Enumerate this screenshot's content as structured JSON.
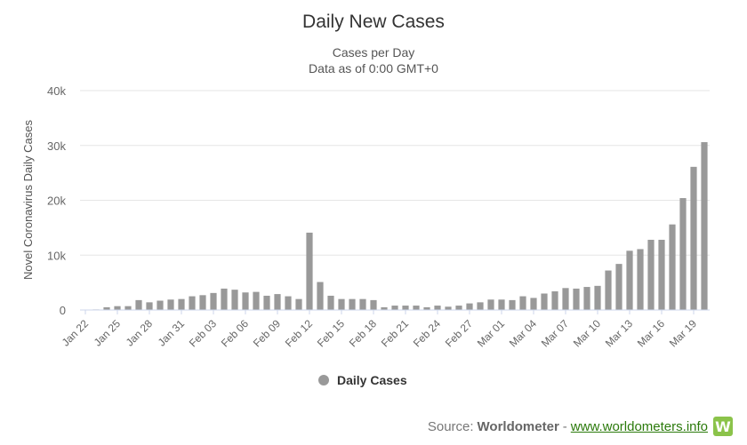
{
  "chart_data": {
    "type": "bar",
    "title": "Daily New Cases",
    "subtitle_line1": "Cases per Day",
    "subtitle_line2": "Data as of 0:00 GMT+0",
    "ylabel": "Novel Coronavirus Daily Cases",
    "xlabel": "",
    "ylim": [
      0,
      40000
    ],
    "yticks": [
      0,
      10000,
      20000,
      30000,
      40000
    ],
    "ytick_labels": [
      "0",
      "10k",
      "20k",
      "30k",
      "40k"
    ],
    "xtick_labels": [
      "Jan 22",
      "Jan 25",
      "Jan 28",
      "Jan 31",
      "Feb 03",
      "Feb 06",
      "Feb 09",
      "Feb 12",
      "Feb 15",
      "Feb 18",
      "Feb 21",
      "Feb 24",
      "Feb 27",
      "Mar 01",
      "Mar 04",
      "Mar 07",
      "Mar 10",
      "Mar 13",
      "Mar 16",
      "Mar 19"
    ],
    "grid": true,
    "legend_position": "bottom-center",
    "bar_color": "#999999",
    "series": [
      {
        "name": "Daily Cases",
        "values": [
          0,
          100,
          500,
          700,
          700,
          1800,
          1400,
          1700,
          1900,
          2000,
          2500,
          2700,
          3100,
          3900,
          3700,
          3200,
          3300,
          2600,
          2900,
          2500,
          2000,
          14100,
          5100,
          2600,
          2000,
          2000,
          2000,
          1800,
          500,
          800,
          800,
          800,
          500,
          800,
          600,
          800,
          1200,
          1400,
          1900,
          1900,
          1800,
          2500,
          2200,
          3000,
          3400,
          4000,
          3900,
          4200,
          4400,
          7200,
          8400,
          10800,
          11100,
          12800,
          12800,
          15600,
          20400,
          26100,
          30600
        ]
      }
    ]
  },
  "source": {
    "prefix": "Source:",
    "brand": "Worldometer",
    "separator": "-",
    "link": "www.worldometers.info",
    "logo_letter": "W"
  }
}
